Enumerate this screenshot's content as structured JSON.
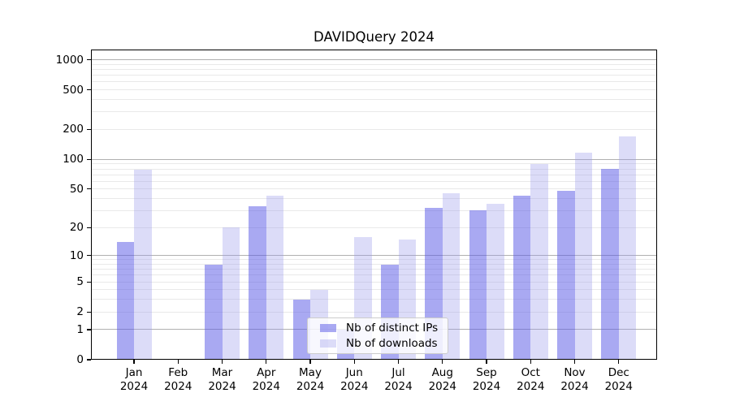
{
  "chart_data": {
    "type": "bar",
    "title": "DAVIDQuery 2024",
    "categories": [
      "Jan 2024",
      "Feb 2024",
      "Mar 2024",
      "Apr 2024",
      "May 2024",
      "Jun 2024",
      "Jul 2024",
      "Aug 2024",
      "Sep 2024",
      "Oct 2024",
      "Nov 2024",
      "Dec 2024"
    ],
    "series": [
      {
        "name": "Nb of distinct IPs",
        "color": "#5a5ae6",
        "opacity": 0.52,
        "values": [
          14,
          0,
          8,
          33,
          3,
          1,
          8,
          32,
          30,
          43,
          48,
          80
        ]
      },
      {
        "name": "Nb of downloads",
        "color": "#9b9bec",
        "opacity": 0.35,
        "values": [
          78,
          0,
          20,
          43,
          4,
          16,
          15,
          45,
          35,
          89,
          118,
          170
        ]
      }
    ],
    "xlabel": "",
    "ylabel": "",
    "yscale": "log10(value+1)",
    "ylim": [
      0,
      1290
    ],
    "yticks": [
      0,
      1,
      2,
      5,
      10,
      20,
      50,
      100,
      200,
      500,
      1000
    ],
    "grid": {
      "major_lines": [
        1,
        10,
        100,
        1000
      ],
      "minor_lines": [
        2,
        3,
        4,
        5,
        6,
        7,
        8,
        9,
        20,
        30,
        40,
        50,
        60,
        70,
        80,
        90,
        200,
        300,
        400,
        500,
        600,
        700,
        800,
        900
      ],
      "major_color": "#b0b0b0",
      "minor_color": "#e9e9e9"
    },
    "legend": {
      "location": "lower center",
      "entries": [
        "Nb of distinct IPs",
        "Nb of downloads"
      ]
    }
  }
}
